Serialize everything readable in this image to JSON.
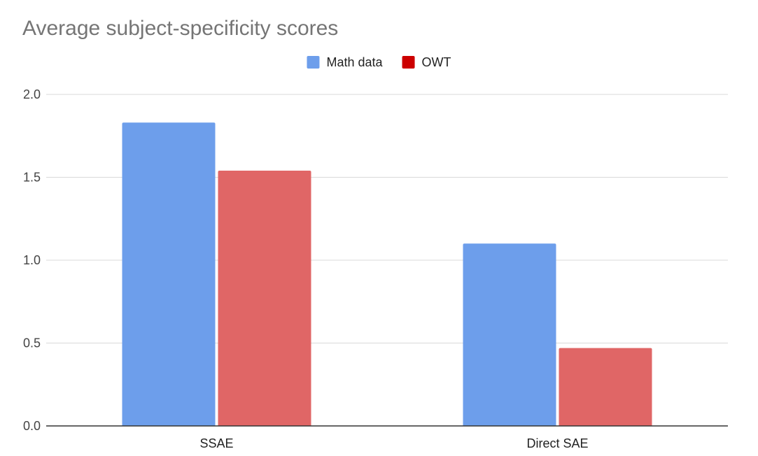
{
  "chart_data": {
    "type": "bar",
    "title": "Average subject-specificity scores",
    "categories": [
      "SSAE",
      "Direct SAE"
    ],
    "series": [
      {
        "name": "Math data",
        "color": "#6d9eeb",
        "legend_color": "#6d9eeb",
        "values": [
          1.83,
          1.1
        ]
      },
      {
        "name": "OWT",
        "color": "#e06666",
        "legend_color": "#cc0000",
        "values": [
          1.54,
          0.47
        ]
      }
    ],
    "ylim": [
      0,
      2.0
    ],
    "yticks": [
      "0.0",
      "0.5",
      "1.0",
      "1.5",
      "2.0"
    ],
    "xlabel": "",
    "ylabel": "",
    "grid": true,
    "legend_position": "top-center"
  }
}
